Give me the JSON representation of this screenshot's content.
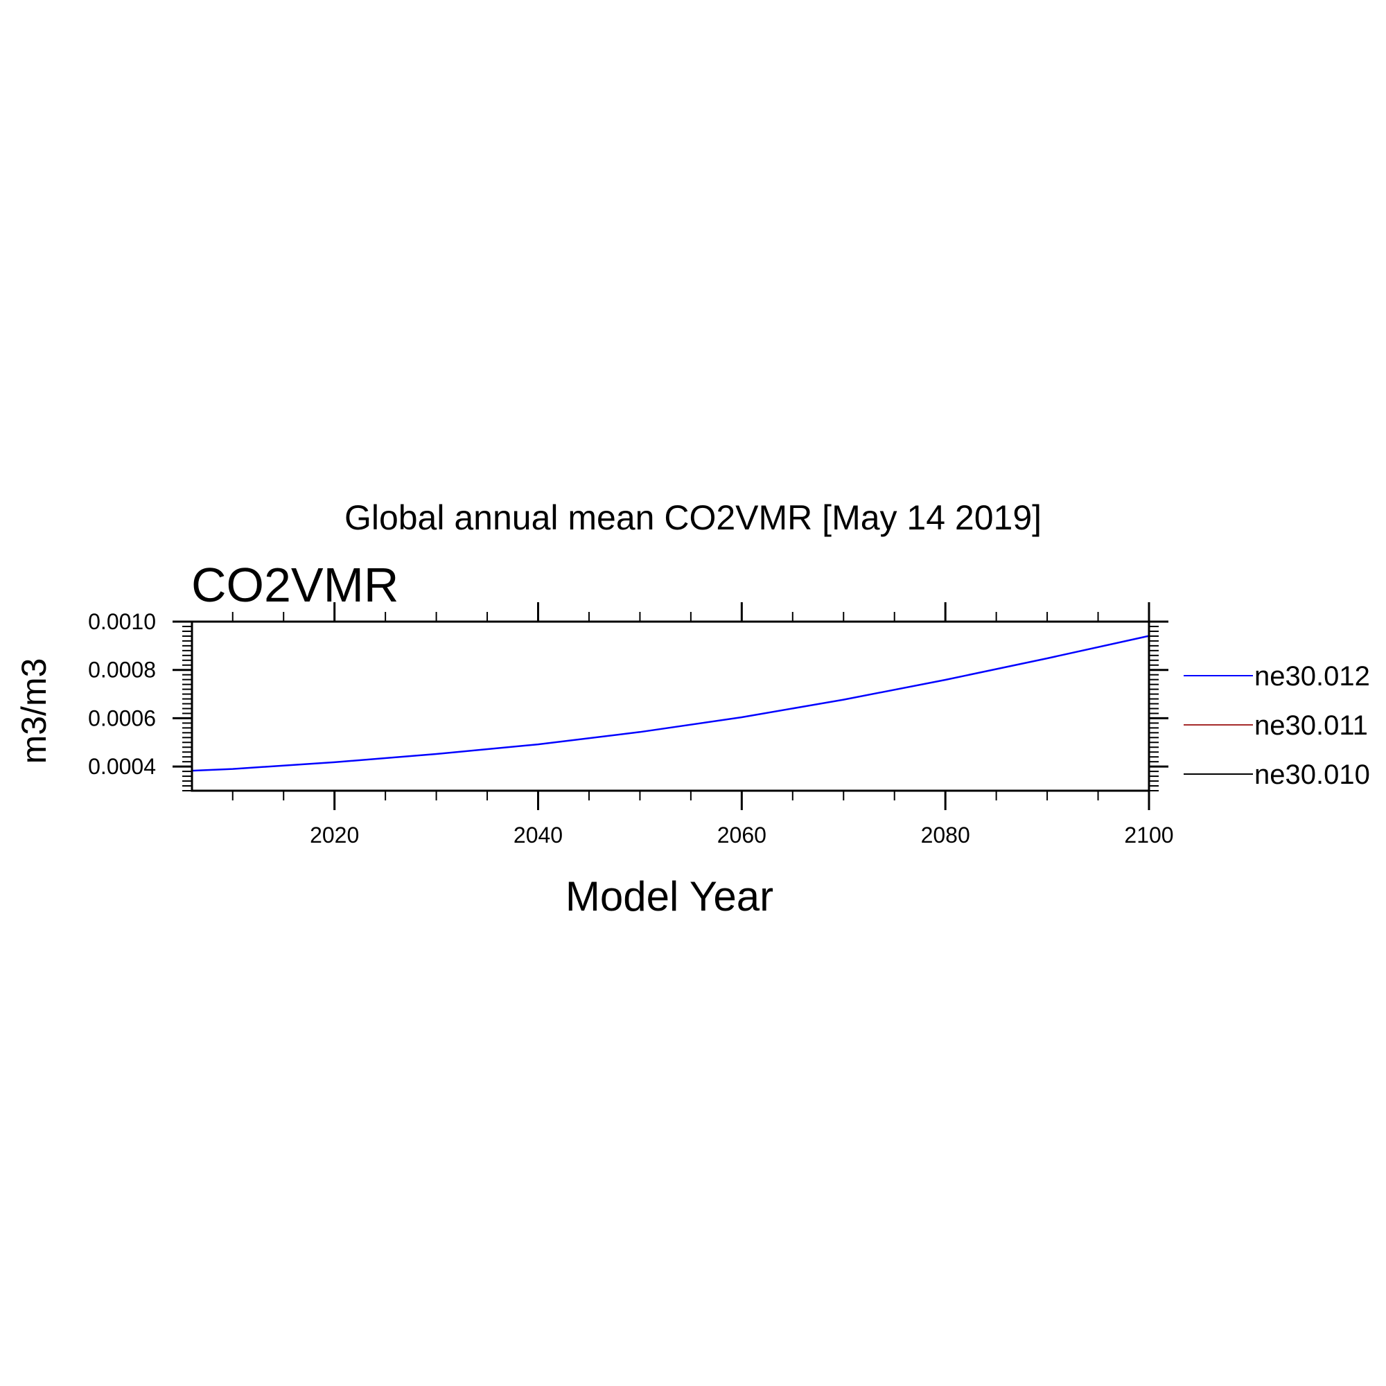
{
  "chart_data": {
    "type": "line",
    "title": "Global annual mean CO2VMR [May 14 2019]",
    "subtitle": "CO2VMR",
    "xlabel": "Model Year",
    "ylabel": "m3/m3",
    "xlim": [
      2006,
      2100
    ],
    "ylim": [
      0.0003,
      0.001
    ],
    "x_ticks": [
      2020,
      2040,
      2060,
      2080,
      2100
    ],
    "y_ticks": [
      0.0004,
      0.0006,
      0.0008,
      0.001
    ],
    "x_tick_labels": [
      "2020",
      "2040",
      "2060",
      "2080",
      "2100"
    ],
    "y_tick_labels": [
      "0.0004",
      "0.0006",
      "0.0008",
      "0.0010"
    ],
    "legend_position": "right",
    "series": [
      {
        "name": "ne30.012",
        "color": "#0000ff",
        "x": [
          2006,
          2010,
          2020,
          2030,
          2040,
          2050,
          2060,
          2070,
          2080,
          2090,
          2100
        ],
        "y": [
          0.000383,
          0.00039,
          0.000418,
          0.000452,
          0.000492,
          0.000543,
          0.000604,
          0.000677,
          0.000759,
          0.000848,
          0.000941
        ]
      },
      {
        "name": "ne30.011",
        "color": "#a52a2a",
        "x": [],
        "y": []
      },
      {
        "name": "ne30.010",
        "color": "#000000",
        "x": [],
        "y": []
      }
    ]
  }
}
